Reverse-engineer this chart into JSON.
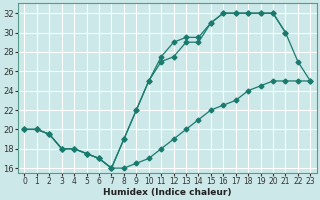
{
  "title": "",
  "xlabel": "Humidex (Indice chaleur)",
  "xlim": [
    -0.5,
    23.5
  ],
  "ylim": [
    15.5,
    33
  ],
  "xticks": [
    0,
    1,
    2,
    3,
    4,
    5,
    6,
    7,
    8,
    9,
    10,
    11,
    12,
    13,
    14,
    15,
    16,
    17,
    18,
    19,
    20,
    21,
    22,
    23
  ],
  "yticks": [
    16,
    18,
    20,
    22,
    24,
    26,
    28,
    30,
    32
  ],
  "bg_color": "#cce8e8",
  "grid_color": "#b0d0d0",
  "line_color": "#1a7a6e",
  "lines": [
    {
      "x": [
        0,
        1,
        2,
        3,
        4,
        5,
        6,
        7,
        8,
        9,
        10,
        11,
        12,
        13,
        14,
        15,
        16,
        17,
        18,
        19,
        20,
        21,
        22,
        23
      ],
      "y": [
        20,
        20,
        19.5,
        18,
        18,
        17.5,
        17,
        16,
        19,
        22,
        25,
        27,
        27.5,
        29,
        29,
        31,
        32,
        32,
        32,
        32,
        32,
        30,
        27,
        25
      ]
    },
    {
      "x": [
        0,
        1,
        2,
        3,
        4,
        5,
        6,
        7,
        8,
        9,
        10,
        11,
        12,
        13,
        14,
        15,
        16,
        17,
        18,
        19,
        20,
        21
      ],
      "y": [
        20,
        20,
        19.5,
        18,
        18,
        17.5,
        17,
        16,
        19,
        22,
        25,
        27.5,
        29,
        29.5,
        29.5,
        31,
        32,
        32,
        32,
        32,
        32,
        30
      ]
    },
    {
      "x": [
        0,
        1,
        2,
        3,
        4,
        5,
        6,
        7,
        8,
        9,
        10,
        11,
        12,
        13,
        14,
        15,
        16,
        17,
        18,
        19,
        20,
        21,
        22,
        23
      ],
      "y": [
        20,
        20,
        19.5,
        18,
        18,
        17.5,
        17,
        16,
        16,
        16.5,
        17,
        18,
        19,
        20,
        21,
        22,
        22.5,
        23,
        24,
        24.5,
        25,
        25,
        25,
        25
      ]
    }
  ]
}
